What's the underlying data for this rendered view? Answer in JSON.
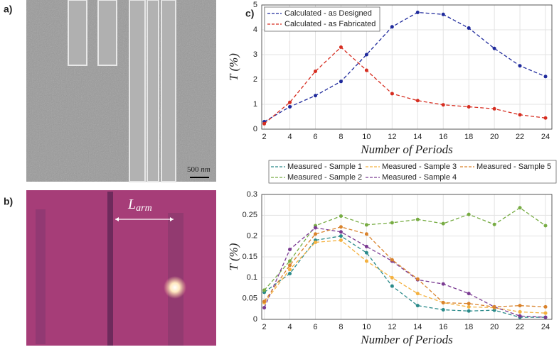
{
  "panel_labels": [
    "a)",
    "b)",
    "c)"
  ],
  "scale_bar": {
    "value": "500",
    "unit": "nm"
  },
  "arm_label": {
    "main": "L",
    "sub": "arm"
  },
  "chart_data": [
    {
      "type": "line",
      "ylabel": "T (%)",
      "xlabel": "Number of Periods",
      "x": [
        2,
        4,
        6,
        8,
        10,
        12,
        14,
        16,
        18,
        20,
        22,
        24
      ],
      "xlim": [
        1.8,
        24.5
      ],
      "xticks": [
        2,
        4,
        6,
        8,
        10,
        12,
        14,
        16,
        18,
        20,
        22,
        24
      ],
      "ylim": [
        0,
        5
      ],
      "yticks": [
        0,
        1,
        2,
        3,
        4,
        5
      ],
      "grid": true,
      "legend": "upper left",
      "series": [
        {
          "name": "Calculated - as Designed",
          "color": "#1f2a9c",
          "values": [
            0.3,
            0.9,
            1.35,
            1.92,
            3.0,
            4.12,
            4.7,
            4.62,
            4.07,
            3.25,
            2.55,
            2.12
          ]
        },
        {
          "name": "Calculated - as Fabricated",
          "color": "#d62d20",
          "values": [
            0.22,
            1.08,
            2.33,
            3.3,
            2.37,
            1.43,
            1.15,
            0.98,
            0.9,
            0.82,
            0.58,
            0.45
          ]
        }
      ]
    },
    {
      "type": "line",
      "ylabel": "T (%)",
      "xlabel": "Number of Periods",
      "x": [
        2,
        4,
        6,
        8,
        10,
        12,
        14,
        16,
        18,
        20,
        22,
        24
      ],
      "xlim": [
        1.8,
        24.5
      ],
      "xticks": [
        2,
        4,
        6,
        8,
        10,
        12,
        14,
        16,
        18,
        20,
        22,
        24
      ],
      "ylim": [
        0,
        0.3
      ],
      "yticks": [
        0,
        0.05,
        0.1,
        0.15,
        0.2,
        0.25,
        0.3
      ],
      "grid": true,
      "legend": "top",
      "series": [
        {
          "name": "Measured - Sample 1",
          "color": "#2a8a8a",
          "values": [
            0.065,
            0.11,
            0.19,
            0.2,
            0.16,
            0.08,
            0.033,
            0.023,
            0.02,
            0.022,
            0.005,
            0.005
          ]
        },
        {
          "name": "Measured - Sample 2",
          "color": "#77ac43",
          "values": [
            0.07,
            0.14,
            0.225,
            0.248,
            0.227,
            0.232,
            0.24,
            0.23,
            0.252,
            0.228,
            0.268,
            0.225
          ]
        },
        {
          "name": "Measured - Sample 3",
          "color": "#f4b13f",
          "values": [
            0.04,
            0.12,
            0.185,
            0.19,
            0.14,
            0.1,
            0.062,
            0.04,
            0.03,
            0.028,
            0.018,
            0.015
          ]
        },
        {
          "name": "Measured - Sample 4",
          "color": "#7a3a92",
          "values": [
            0.028,
            0.168,
            0.22,
            0.21,
            0.175,
            0.14,
            0.095,
            0.085,
            0.062,
            0.03,
            0.008,
            0.005
          ]
        },
        {
          "name": "Measured - Sample 5",
          "color": "#d9822b",
          "values": [
            0.043,
            0.13,
            0.205,
            0.222,
            0.205,
            0.143,
            0.097,
            0.04,
            0.038,
            0.03,
            0.033,
            0.03
          ]
        }
      ]
    }
  ]
}
